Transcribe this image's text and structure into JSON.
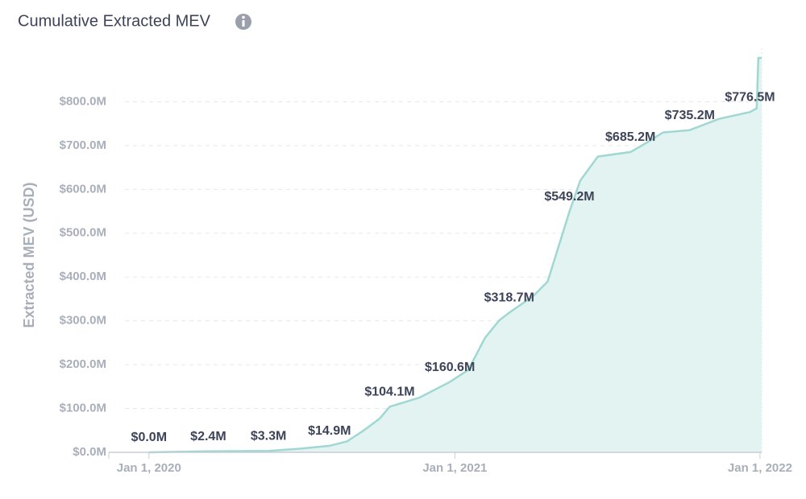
{
  "chart_data": {
    "type": "area",
    "title": "Cumulative Extracted MEV",
    "ylabel": "Extracted MEV (USD)",
    "color": "#9fd8d3",
    "fill": "#e3f3f2",
    "grid": true,
    "x": [
      "2020-01-01",
      "2020-03-12",
      "2020-05-23",
      "2020-06-28",
      "2020-08-04",
      "2020-08-25",
      "2020-09-14",
      "2020-10-03",
      "2020-10-15",
      "2020-11-20",
      "2020-12-26",
      "2021-01-17",
      "2021-02-06",
      "2021-02-23",
      "2021-03-07",
      "2021-04-05",
      "2021-04-22",
      "2021-05-04",
      "2021-05-18",
      "2021-05-31",
      "2021-06-21",
      "2021-07-30",
      "2021-08-18",
      "2021-09-07",
      "2021-10-09",
      "2021-11-13",
      "2021-12-20",
      "2021-12-28",
      "2021-12-30",
      "2022-01-03"
    ],
    "values": [
      0,
      2.4,
      3.3,
      8,
      14.9,
      25,
      50,
      77,
      104.1,
      125,
      160.6,
      188,
      261,
      301,
      318.7,
      357,
      390,
      463,
      549.2,
      620,
      675,
      685.2,
      706,
      730,
      735.2,
      761,
      776.5,
      785,
      900,
      900
    ],
    "value_labels": [
      "$0.0M",
      "$2.4M",
      "$3.3M",
      null,
      "$14.9M",
      null,
      null,
      null,
      "$104.1M",
      null,
      "$160.6M",
      null,
      null,
      null,
      "$318.7M",
      null,
      null,
      null,
      "$549.2M",
      null,
      null,
      "$685.2M",
      null,
      null,
      "$735.2M",
      null,
      "$776.5M",
      null,
      null,
      null
    ],
    "xlim": [
      "2019-11-14",
      "2022-01-03"
    ],
    "xticks": [
      {
        "value": "2020-01-01",
        "label": "Jan 1, 2020"
      },
      {
        "value": "2021-01-01",
        "label": "Jan 1, 2021"
      },
      {
        "value": "2022-01-01",
        "label": "Jan 1, 2022"
      }
    ],
    "ylim": [
      0,
      900
    ],
    "yticks": [
      {
        "value": 0,
        "label": "$0.0M"
      },
      {
        "value": 100,
        "label": "$100.0M"
      },
      {
        "value": 200,
        "label": "$200.0M"
      },
      {
        "value": 300,
        "label": "$300.0M"
      },
      {
        "value": 400,
        "label": "$400.0M"
      },
      {
        "value": 500,
        "label": "$500.0M"
      },
      {
        "value": 600,
        "label": "$600.0M"
      },
      {
        "value": 700,
        "label": "$700.0M"
      },
      {
        "value": 800,
        "label": "$800.0M"
      }
    ]
  }
}
